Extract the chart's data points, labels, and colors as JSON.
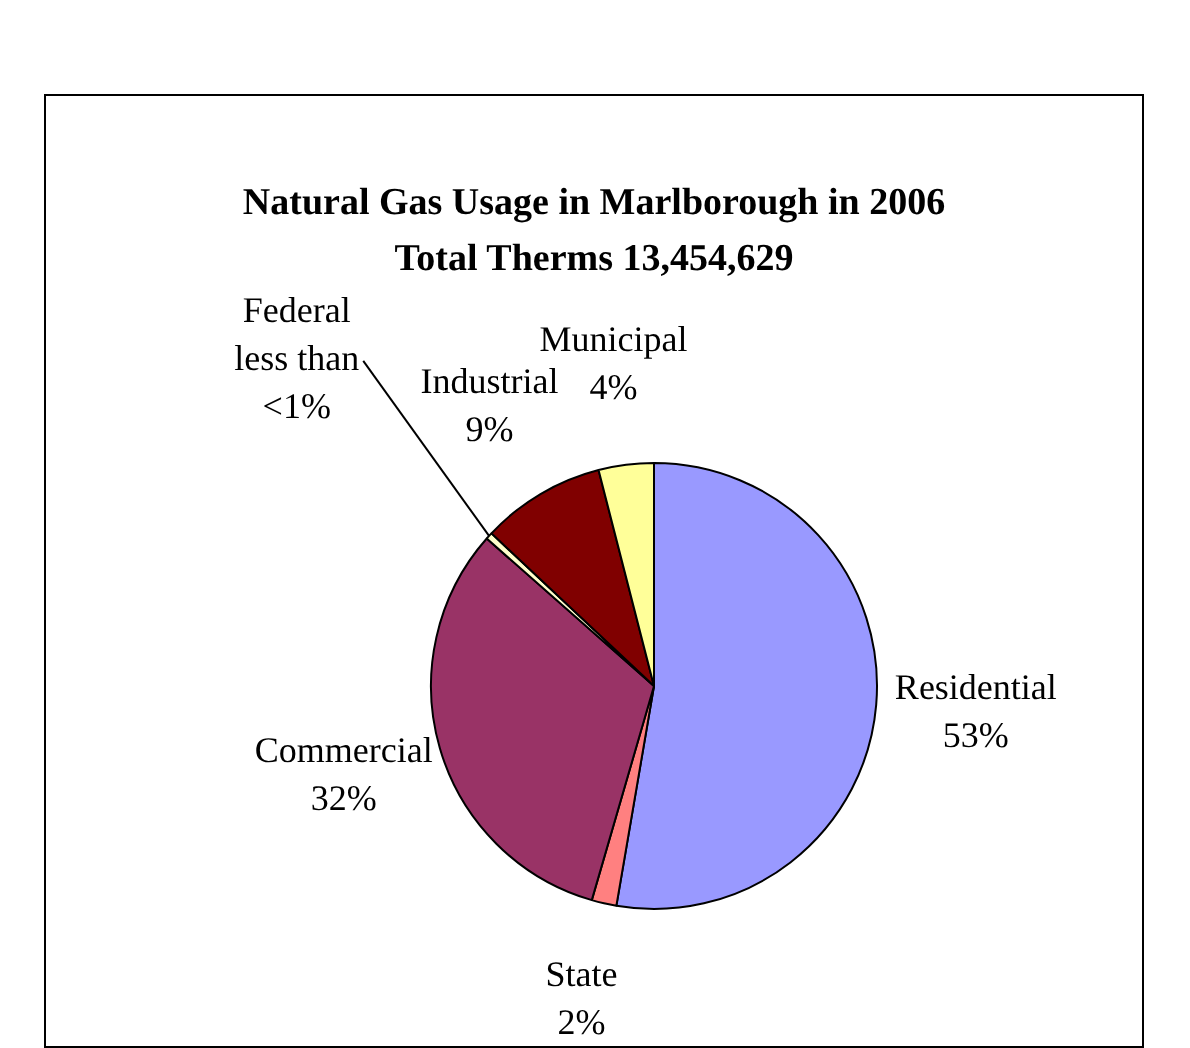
{
  "chart_data": {
    "type": "pie",
    "title": "Natural Gas Usage in Marlborough in 2006\nTotal Therms 13,454,629",
    "categories": [
      "Residential",
      "State",
      "Commercial",
      "Federal",
      "Industrial",
      "Municipal"
    ],
    "values": [
      52.7,
      1.8,
      32.0,
      0.5,
      9.0,
      4.0
    ],
    "value_labels": [
      "53%",
      "2%",
      "32%",
      "less than\n<1%",
      "9%",
      "4%"
    ],
    "colors": [
      "#9999ff",
      "#ff8080",
      "#993366",
      "#ffffcc",
      "#800000",
      "#ffff99"
    ],
    "legend": false
  }
}
